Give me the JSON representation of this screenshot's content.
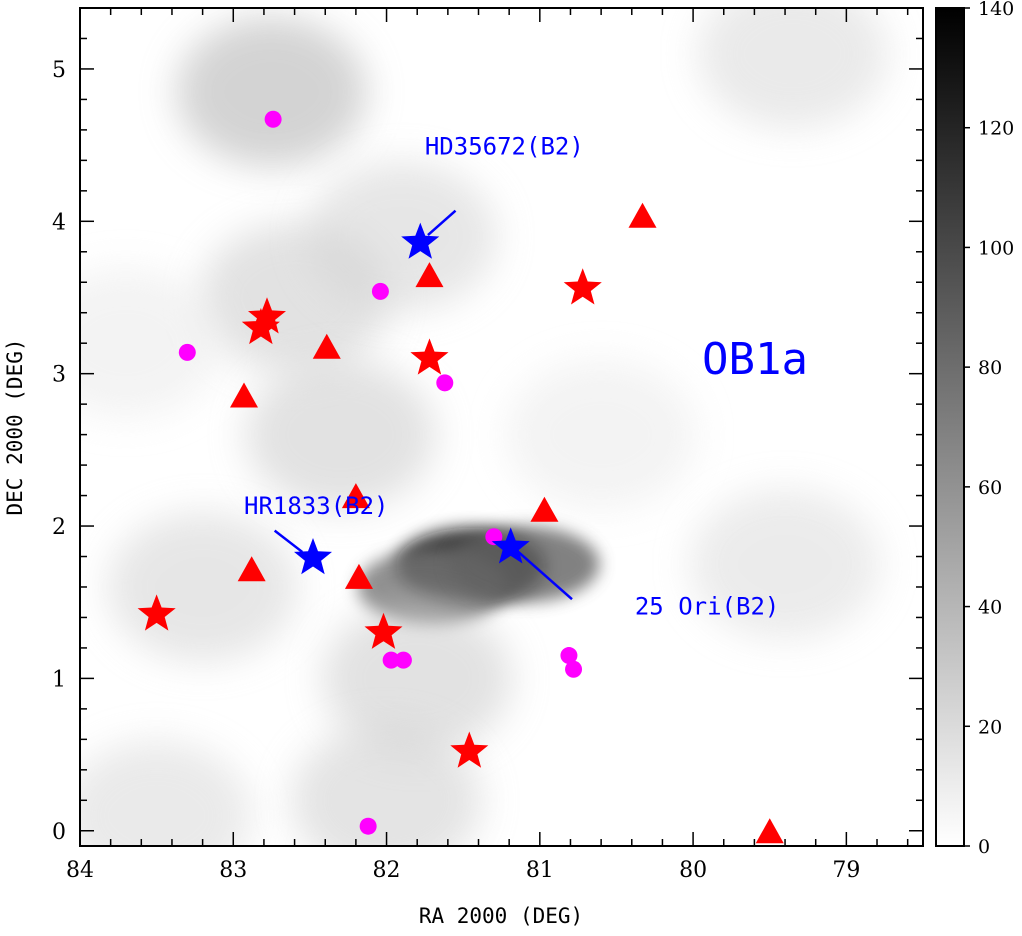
{
  "chart_data": {
    "type": "scatter",
    "title": "",
    "xlabel": "RA 2000 (DEG)",
    "ylabel": "DEC 2000 (DEG)",
    "xlim": [
      84,
      78.5
    ],
    "ylim": [
      -0.1,
      5.4
    ],
    "x_ticks": [
      84,
      83,
      82,
      81,
      80,
      79
    ],
    "y_ticks": [
      0,
      1,
      2,
      3,
      4,
      5
    ],
    "grid": false,
    "region_label": "OB1a",
    "colorbar": {
      "range": [
        0,
        140
      ],
      "ticks": [
        0,
        20,
        40,
        60,
        80,
        100,
        120,
        140
      ],
      "colormap": "gray_reversed"
    },
    "density_background": [
      {
        "ra": 81.45,
        "dec": 1.74,
        "level": 140
      },
      {
        "ra": 81.7,
        "dec": 1.6,
        "level": 80
      },
      {
        "ra": 81.1,
        "dec": 1.75,
        "level": 90
      },
      {
        "ra": 82.75,
        "dec": 4.85,
        "level": 45
      },
      {
        "ra": 82.6,
        "dec": 3.5,
        "level": 30
      },
      {
        "ra": 82.3,
        "dec": 2.6,
        "level": 30
      },
      {
        "ra": 81.9,
        "dec": 3.9,
        "level": 25
      },
      {
        "ra": 83.2,
        "dec": 1.6,
        "level": 25
      },
      {
        "ra": 81.8,
        "dec": 1.0,
        "level": 30
      },
      {
        "ra": 83.5,
        "dec": 0.1,
        "level": 22
      },
      {
        "ra": 82.0,
        "dec": 0.2,
        "level": 28
      },
      {
        "ra": 79.35,
        "dec": 5.1,
        "level": 22
      },
      {
        "ra": 79.4,
        "dec": 1.75,
        "level": 20
      },
      {
        "ra": 80.6,
        "dec": 2.6,
        "level": 12
      },
      {
        "ra": 83.7,
        "dec": 3.2,
        "level": 12
      }
    ],
    "series": [
      {
        "marker": "star",
        "color": "#ff0000",
        "points": [
          [
            82.78,
            3.37
          ],
          [
            82.82,
            3.3
          ],
          [
            81.72,
            3.1
          ],
          [
            80.72,
            3.56
          ],
          [
            83.5,
            1.42
          ],
          [
            82.02,
            1.3
          ],
          [
            81.46,
            0.52
          ]
        ]
      },
      {
        "marker": "triangle",
        "color": "#ff0000",
        "points": [
          [
            80.33,
            4.03
          ],
          [
            81.72,
            3.64
          ],
          [
            82.39,
            3.17
          ],
          [
            82.93,
            2.85
          ],
          [
            82.2,
            2.19
          ],
          [
            80.97,
            2.1
          ],
          [
            82.88,
            1.71
          ],
          [
            82.18,
            1.66
          ],
          [
            79.5,
            -0.01
          ]
        ]
      },
      {
        "marker": "circle",
        "color": "#ff00ff",
        "points": [
          [
            82.74,
            4.67
          ],
          [
            82.04,
            3.54
          ],
          [
            83.3,
            3.14
          ],
          [
            81.62,
            2.94
          ],
          [
            81.3,
            1.93
          ],
          [
            81.97,
            1.12
          ],
          [
            81.89,
            1.12
          ],
          [
            80.81,
            1.15
          ],
          [
            80.78,
            1.06
          ],
          [
            82.12,
            0.03
          ]
        ]
      },
      {
        "marker": "star",
        "color": "#0000ff",
        "points": [
          [
            81.78,
            3.86
          ],
          [
            82.48,
            1.79
          ],
          [
            81.19,
            1.86
          ]
        ]
      }
    ],
    "annotations": [
      {
        "text": "HD35672(B2)",
        "text_ra": 81.75,
        "text_dec": 4.44,
        "line_from": [
          81.55,
          4.07
        ],
        "line_to": [
          81.73,
          3.91
        ]
      },
      {
        "text": "HR1833(B2)",
        "text_ra": 82.93,
        "text_dec": 2.08,
        "line_from": [
          82.73,
          1.97
        ],
        "line_to": [
          82.55,
          1.83
        ]
      },
      {
        "text": "25 Ori(B2)",
        "text_ra": 80.38,
        "text_dec": 1.42,
        "line_from": [
          80.79,
          1.52
        ],
        "line_to": [
          81.14,
          1.83
        ]
      }
    ]
  }
}
